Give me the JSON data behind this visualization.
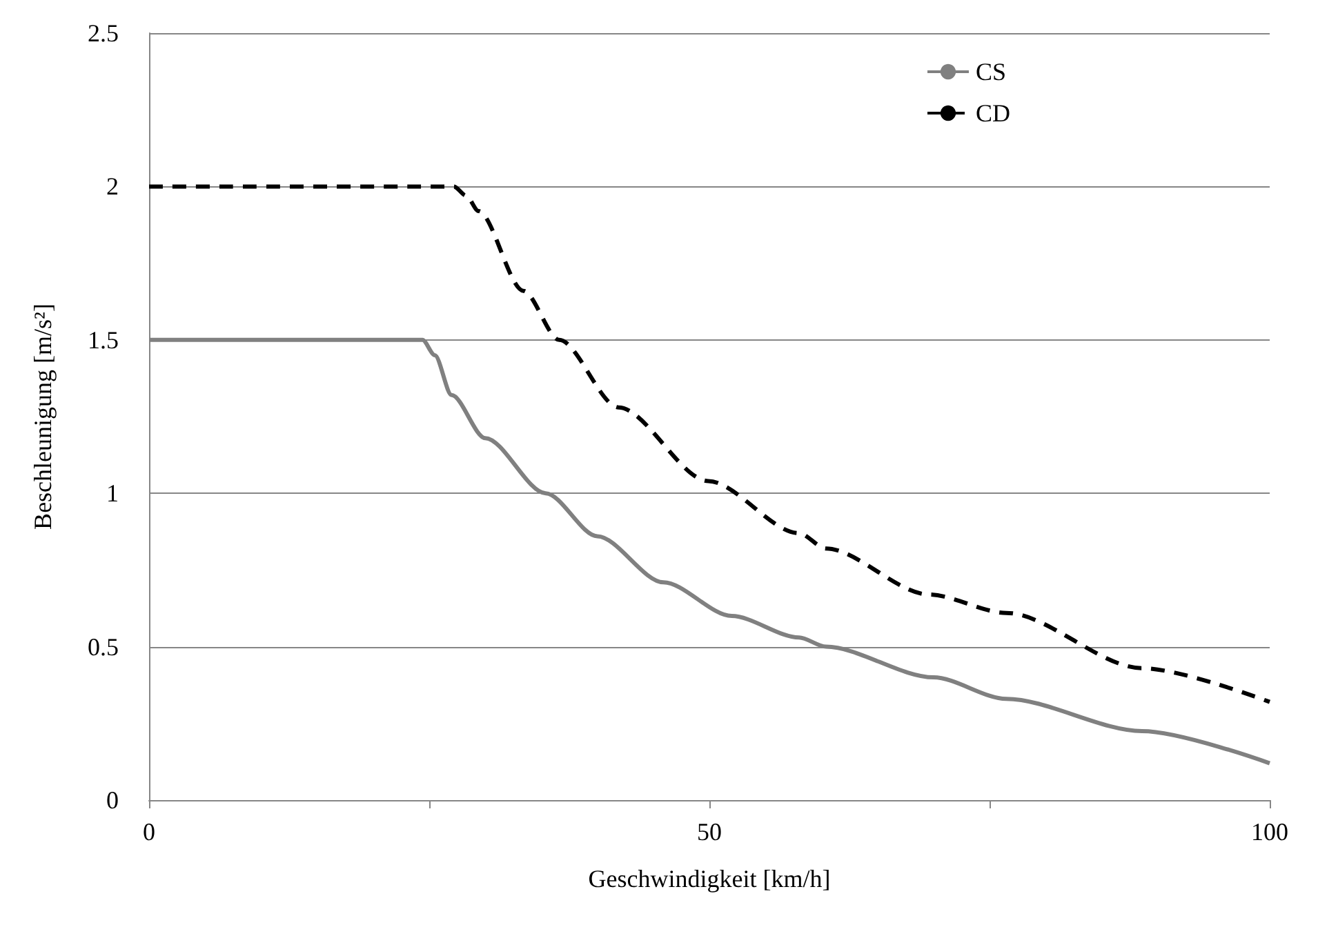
{
  "chart_data": {
    "type": "line",
    "xlabel": "Geschwindigkeit [km/h]",
    "ylabel": "Beschleunigung [m/s²]",
    "xlim": [
      0,
      100
    ],
    "xticks": [
      0,
      {
        "value": 25,
        "label": null
      },
      50,
      {
        "value": 75,
        "label": null
      },
      100
    ],
    "ylim": [
      0,
      2.5
    ],
    "yticks": [
      0,
      0.5,
      1,
      1.5,
      2,
      2.5
    ],
    "grid": "y",
    "legend": "top right",
    "marker": "none",
    "series": [
      {
        "name": "CS",
        "color": "#808080",
        "line_style": "solid",
        "x": [
          0,
          24.4,
          25.5,
          27,
          30,
          35.4,
          40,
          45.9,
          52,
          58,
          60.4,
          70,
          76.5,
          88.6,
          100
        ],
        "values": [
          1.5,
          1.5,
          1.45,
          1.32,
          1.18,
          1.0,
          0.86,
          0.71,
          0.6,
          0.53,
          0.5,
          0.4,
          0.33,
          0.225,
          0.12
        ]
      },
      {
        "name": "CD",
        "color": "#000000",
        "line_style": "dashed",
        "x": [
          0,
          27.2,
          28.3,
          29.4,
          33.4,
          36.6,
          41.9,
          49.9,
          58,
          60.4,
          69.6,
          76.5,
          88.6,
          100
        ],
        "values": [
          2,
          2,
          1.97,
          1.92,
          1.66,
          1.5,
          1.28,
          1.04,
          0.87,
          0.82,
          0.67,
          0.61,
          0.43,
          0.32
        ]
      }
    ]
  }
}
